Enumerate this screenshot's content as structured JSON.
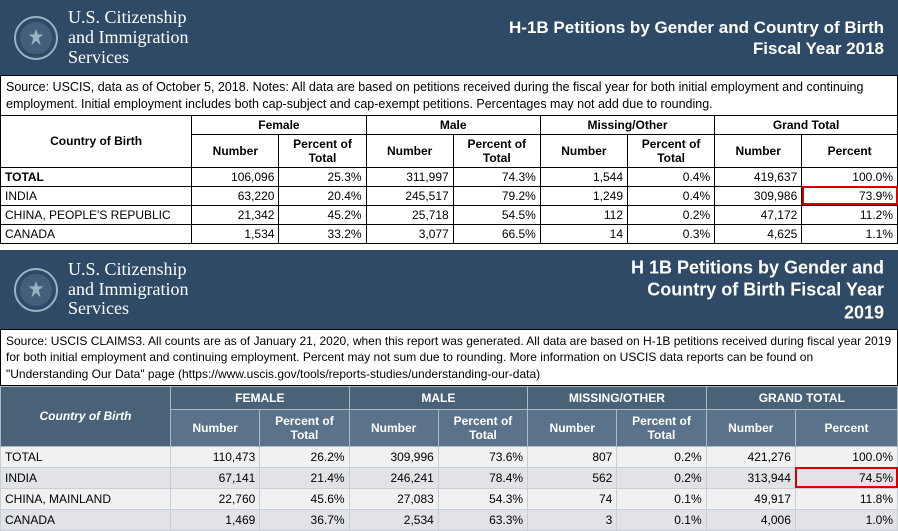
{
  "agency": {
    "line1": "U.S. Citizenship",
    "line2": "and Immigration",
    "line3": "Services"
  },
  "report1": {
    "title_l1": "H-1B Petitions by Gender and Country of Birth",
    "title_l2": "Fiscal Year 2018",
    "source": "Source: USCIS, data as of October 5, 2018. Notes:  All data are based on petitions received during the fiscal year for both initial employment and continuing employment. Initial employment includes both cap-subject and cap-exempt petitions. Percentages may not add due to rounding.",
    "groups": {
      "cob": "Country of Birth",
      "female": "Female",
      "male": "Male",
      "missing": "Missing/Other",
      "grand": "Grand Total"
    },
    "sub": {
      "number": "Number",
      "pct_total": "Percent of Total",
      "percent": "Percent"
    },
    "rows": [
      {
        "label": "TOTAL",
        "f_n": "106,096",
        "f_p": "25.3%",
        "m_n": "311,997",
        "m_p": "74.3%",
        "o_n": "1,544",
        "o_p": "0.4%",
        "g_n": "419,637",
        "g_p": "100.0%",
        "bold": true
      },
      {
        "label": "INDIA",
        "f_n": "63,220",
        "f_p": "20.4%",
        "m_n": "245,517",
        "m_p": "79.2%",
        "o_n": "1,249",
        "o_p": "0.4%",
        "g_n": "309,986",
        "g_p": "73.9%",
        "red": true
      },
      {
        "label": "CHINA, PEOPLE'S REPUBLIC",
        "f_n": "21,342",
        "f_p": "45.2%",
        "m_n": "25,718",
        "m_p": "54.5%",
        "o_n": "112",
        "o_p": "0.2%",
        "g_n": "47,172",
        "g_p": "11.2%"
      },
      {
        "label": "CANADA",
        "f_n": "1,534",
        "f_p": "33.2%",
        "m_n": "3,077",
        "m_p": "66.5%",
        "o_n": "14",
        "o_p": "0.3%",
        "g_n": "4,625",
        "g_p": "1.1%"
      }
    ]
  },
  "report2": {
    "title_l1": "H 1B Petitions by Gender and",
    "title_l2": "Country of Birth Fiscal Year",
    "title_l3": "2019",
    "source": "Source: USCIS CLAIMS3. All counts are as of January 21, 2020, when this report was generated. All data are based on H-1B petitions received during fiscal year 2019 for both initial employment and continuing employment. Percent may not sum due to rounding. More information on USCIS data reports can be found on \"Understanding Our Data\" page (https://www.uscis.gov/tools/reports-studies/understanding-our-data)",
    "groups": {
      "cob": "Country of Birth",
      "female": "FEMALE",
      "male": "MALE",
      "missing": "MISSING/OTHER",
      "grand": "GRAND TOTAL"
    },
    "sub": {
      "number": "Number",
      "pct_total": "Percent of Total",
      "percent": "Percent"
    },
    "rows": [
      {
        "label": "TOTAL",
        "f_n": "110,473",
        "f_p": "26.2%",
        "m_n": "309,996",
        "m_p": "73.6%",
        "o_n": "807",
        "o_p": "0.2%",
        "g_n": "421,276",
        "g_p": "100.0%",
        "cls": "ra"
      },
      {
        "label": "INDIA",
        "f_n": "67,141",
        "f_p": "21.4%",
        "m_n": "246,241",
        "m_p": "78.4%",
        "o_n": "562",
        "o_p": "0.2%",
        "g_n": "313,944",
        "g_p": "74.5%",
        "red": true,
        "cls": "rb"
      },
      {
        "label": "CHINA, MAINLAND",
        "f_n": "22,760",
        "f_p": "45.6%",
        "m_n": "27,083",
        "m_p": "54.3%",
        "o_n": "74",
        "o_p": "0.1%",
        "g_n": "49,917",
        "g_p": "11.8%",
        "cls": "ra"
      },
      {
        "label": "CANADA",
        "f_n": "1,469",
        "f_p": "36.7%",
        "m_n": "2,534",
        "m_p": "63.3%",
        "o_n": "3",
        "o_p": "0.1%",
        "g_n": "4,006",
        "g_p": "1.0%",
        "cls": "rb"
      }
    ]
  },
  "style": {
    "header_bg": "#2e4a66",
    "header_fg": "#ffffff",
    "tbl2_head_bg": "#5a738a",
    "highlight_border": "#d60000"
  }
}
